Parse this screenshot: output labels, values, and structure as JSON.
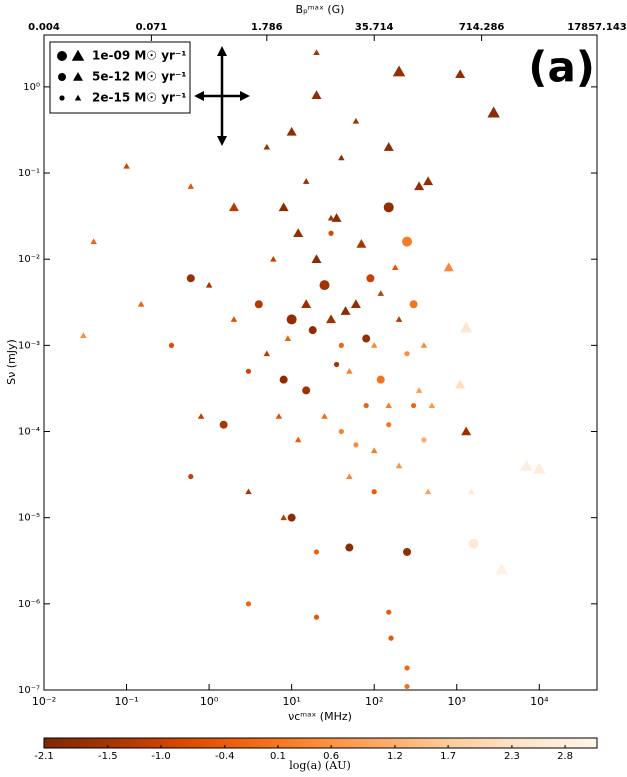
{
  "chart_data": {
    "type": "scatter",
    "annotation": "(a)",
    "xlabel": "νcᵐᵃˣ (MHz)",
    "ylabel": "Sν (mJy)",
    "x2label": "Bₚᵐᵃˣ (G)",
    "xscale": "log",
    "yscale": "log",
    "xlim": [
      0.01,
      50000
    ],
    "ylim": [
      1e-07,
      4
    ],
    "xticks": [
      {
        "value": 0.01,
        "label": "10⁻²"
      },
      {
        "value": 0.1,
        "label": "10⁻¹"
      },
      {
        "value": 1,
        "label": "10⁰"
      },
      {
        "value": 10,
        "label": "10¹"
      },
      {
        "value": 100,
        "label": "10²"
      },
      {
        "value": 1000,
        "label": "10³"
      },
      {
        "value": 10000,
        "label": "10⁴"
      }
    ],
    "yticks": [
      {
        "value": 1e-07,
        "label": "10⁻⁷"
      },
      {
        "value": 1e-06,
        "label": "10⁻⁶"
      },
      {
        "value": 1e-05,
        "label": "10⁻⁵"
      },
      {
        "value": 0.0001,
        "label": "10⁻⁴"
      },
      {
        "value": 0.001,
        "label": "10⁻³"
      },
      {
        "value": 0.01,
        "label": "10⁻²"
      },
      {
        "value": 0.1,
        "label": "10⁻¹"
      },
      {
        "value": 1,
        "label": "10⁰"
      }
    ],
    "x2lim": [
      0.003571,
      17857.143
    ],
    "x2ticks": [
      {
        "value": 0.003571,
        "label": "0.004"
      },
      {
        "value": 0.0714,
        "label": "0.071"
      },
      1.786,
      35.714,
      714.286,
      17857.143
    ],
    "colorbar": {
      "label": "log(a) (AU)",
      "lim": [
        -2.1,
        3.1
      ],
      "ticks": [
        -2.1,
        -1.5,
        {
          "value": -1,
          "label": "-1.0"
        },
        -0.4,
        0.1,
        0.6,
        1.2,
        1.7,
        2.3,
        2.8
      ],
      "colors": [
        "#7f2704",
        "#a63603",
        "#d94801",
        "#f16913",
        "#fd8d3c",
        "#fdae6b",
        "#fdd0a2",
        "#fee6ce",
        "#fff5eb"
      ]
    },
    "legend": "upper left",
    "series": [
      {
        "name": "1e-09 M☉ yr⁻¹",
        "x": [
          200,
          2800,
          250,
          1300,
          1600,
          7000,
          10000,
          3500,
          150,
          10,
          25
        ],
        "values": [
          1.5,
          0.5,
          0.016,
          0.0016,
          5e-06,
          4e-05,
          3.7e-05,
          2.5e-06,
          0.04,
          0.002,
          0.005
        ],
        "c": [
          -1.7,
          -1.9,
          0.2,
          2.5,
          2.6,
          2.8,
          2.7,
          2.9,
          -1.8,
          -1.8,
          -1.5
        ],
        "markers": [
          "triangle",
          "triangle",
          "circle",
          "triangle",
          "circle",
          "triangle",
          "triangle",
          "triangle",
          "circle",
          "circle",
          "circle"
        ]
      },
      {
        "name": "5e-12 M☉ yr⁻¹",
        "x": [
          1100,
          350,
          450,
          2,
          0.6,
          1.5,
          10,
          50,
          250,
          800,
          1100,
          1300,
          15,
          20,
          30,
          60,
          120,
          8,
          4,
          12,
          35,
          70,
          90,
          300,
          15,
          8,
          10,
          150,
          20,
          80,
          45,
          18
        ],
        "values": [
          1.4,
          0.07,
          0.08,
          0.04,
          0.006,
          0.00012,
          1e-05,
          4.5e-06,
          4e-06,
          0.008,
          0.00035,
          0.0001,
          0.003,
          0.01,
          0.002,
          0.003,
          0.0004,
          0.0004,
          0.003,
          0.02,
          0.03,
          0.015,
          0.006,
          0.003,
          0.0003,
          0.04,
          0.3,
          0.2,
          0.8,
          0.0012,
          0.0025,
          0.0015
        ],
        "c": [
          -1.8,
          -1.8,
          -1.8,
          -1.3,
          -1.7,
          -1.4,
          -1.9,
          -1.9,
          -1.8,
          0.4,
          2.2,
          -1.7,
          -1.7,
          -1.9,
          -1.6,
          -1.8,
          0.0,
          -1.9,
          -1.3,
          -1.8,
          -1.9,
          -1.4,
          -1.0,
          0.1,
          -1.6,
          -1.9,
          -1.9,
          -1.9,
          -1.8,
          -1.8,
          -1.9,
          -1.9
        ],
        "markers": [
          "triangle",
          "triangle",
          "triangle",
          "triangle",
          "circle",
          "circle",
          "circle",
          "circle",
          "circle",
          "triangle",
          "triangle",
          "triangle",
          "triangle",
          "triangle",
          "triangle",
          "triangle",
          "circle",
          "circle",
          "circle",
          "triangle",
          "triangle",
          "triangle",
          "circle",
          "circle",
          "circle",
          "triangle",
          "triangle",
          "triangle",
          "triangle",
          "circle",
          "triangle",
          "circle"
        ]
      },
      {
        "name": "2e-15 M☉ yr⁻¹",
        "x": [
          20,
          0.1,
          0.6,
          0.04,
          0.03,
          0.15,
          0.35,
          0.8,
          0.6,
          3,
          8,
          20,
          3,
          20,
          150,
          160,
          250,
          250,
          1500,
          500,
          450,
          300,
          40,
          50,
          80,
          100,
          150,
          200,
          5,
          6,
          180,
          400,
          40,
          60,
          100,
          150,
          200,
          25,
          12,
          7,
          3,
          2,
          1,
          50,
          100,
          30,
          15,
          5,
          60,
          40,
          30,
          250,
          350,
          400,
          35,
          120,
          9
        ],
        "values": [
          2.5,
          0.12,
          0.07,
          0.016,
          0.0013,
          0.003,
          0.001,
          0.00015,
          3e-05,
          2e-05,
          1e-05,
          4e-06,
          1e-06,
          7e-07,
          8e-07,
          4e-07,
          1.8e-07,
          1.1e-07,
          2e-05,
          0.0002,
          2e-05,
          0.0002,
          0.001,
          0.0005,
          0.0002,
          0.001,
          0.0002,
          0.002,
          0.0008,
          0.01,
          0.008,
          0.001,
          0.0001,
          7e-05,
          6e-05,
          0.00012,
          4e-05,
          0.00015,
          8e-05,
          0.00015,
          0.0005,
          0.002,
          0.005,
          3e-05,
          2e-05,
          0.02,
          0.08,
          0.2,
          0.4,
          0.15,
          0.03,
          0.0008,
          0.0003,
          8e-05,
          0.0006,
          0.004,
          0.0012
        ],
        "c": [
          -1.5,
          -0.9,
          -0.5,
          -0.2,
          0.5,
          -0.3,
          -0.7,
          -1.2,
          -1.1,
          -1.4,
          -1.2,
          -0.3,
          -0.2,
          -0.5,
          -0.4,
          -0.5,
          -0.2,
          0,
          2.6,
          0.7,
          0.9,
          -0.2,
          -0.2,
          0.3,
          -0.3,
          0.4,
          0.2,
          -1.3,
          -1.2,
          -1.1,
          -0.5,
          0.4,
          0.3,
          0.5,
          0.2,
          0.1,
          0.6,
          -0.1,
          -0.4,
          -0.6,
          -0.9,
          -0.6,
          -1.5,
          0.4,
          -0.4,
          -0.8,
          -1.7,
          -1.8,
          -1.6,
          -1.9,
          -1.6,
          0.5,
          0.8,
          1.1,
          -1.5,
          -1.2,
          -0.3
        ],
        "markers": [
          "triangle",
          "triangle",
          "triangle",
          "triangle",
          "triangle",
          "triangle",
          "circle",
          "triangle",
          "circle",
          "triangle",
          "triangle",
          "circle",
          "circle",
          "circle",
          "circle",
          "circle",
          "circle",
          "circle",
          "triangle",
          "triangle",
          "triangle",
          "circle",
          "circle",
          "triangle",
          "circle",
          "triangle",
          "triangle",
          "triangle",
          "triangle",
          "triangle",
          "triangle",
          "triangle",
          "circle",
          "circle",
          "triangle",
          "circle",
          "triangle",
          "triangle",
          "triangle",
          "triangle",
          "circle",
          "triangle",
          "triangle",
          "triangle",
          "circle",
          "circle",
          "triangle",
          "triangle",
          "triangle",
          "triangle",
          "triangle",
          "circle",
          "triangle",
          "circle",
          "circle",
          "triangle",
          "triangle"
        ]
      }
    ]
  }
}
